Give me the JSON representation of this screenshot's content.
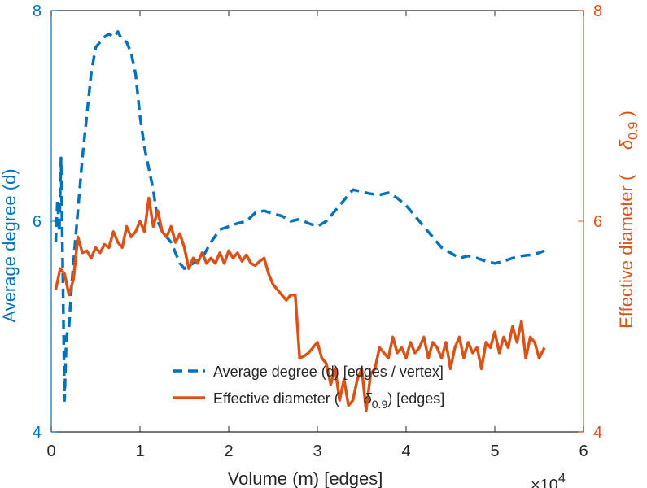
{
  "chart_data": {
    "type": "line",
    "xlabel": "Volume (m) [edges]",
    "x_exponent_label": "×10^4",
    "x_exponent_base": "×10",
    "x_exponent_power": "4",
    "xlim": [
      0,
      6
    ],
    "xticks": [
      "0",
      "1",
      "2",
      "3",
      "4",
      "5",
      "6"
    ],
    "y_left": {
      "label": "Average degree (d)",
      "lim": [
        4,
        8
      ],
      "ticks": [
        "4",
        "6",
        "8"
      ],
      "color": "#0072BD"
    },
    "y_right": {
      "label_prefix": "Effective diameter (",
      "label_symbol": "δ",
      "label_subscript": "0.9",
      "label_suffix": ")",
      "lim": [
        4,
        8
      ],
      "ticks": [
        "4",
        "6",
        "8"
      ],
      "color": "#D95319"
    },
    "legend": {
      "position": "bottom-right",
      "entries": [
        {
          "label": "Average degree (d) [edges / vertex]",
          "style": "dashed",
          "color": "#0072BD"
        },
        {
          "label_prefix": "Effective diameter (",
          "label_symbol": "δ",
          "label_subscript": "0.9",
          "label_suffix": ") [edges]",
          "style": "solid",
          "color": "#D95319"
        }
      ]
    },
    "series": [
      {
        "name": "Average degree (d) [edges / vertex]",
        "axis": "left",
        "color": "#0072BD",
        "style": "dashed",
        "x": [
          0.05,
          0.07,
          0.09,
          0.11,
          0.13,
          0.15,
          0.17,
          0.2,
          0.23,
          0.27,
          0.31,
          0.35,
          0.4,
          0.45,
          0.5,
          0.55,
          0.6,
          0.65,
          0.7,
          0.75,
          0.8,
          0.85,
          0.9,
          0.95,
          1.0,
          1.05,
          1.1,
          1.15,
          1.2,
          1.25,
          1.3,
          1.35,
          1.4,
          1.45,
          1.5,
          1.55,
          1.6,
          1.7,
          1.8,
          1.9,
          2.0,
          2.1,
          2.2,
          2.3,
          2.4,
          2.5,
          2.6,
          2.7,
          2.8,
          2.9,
          3.0,
          3.1,
          3.2,
          3.3,
          3.4,
          3.5,
          3.6,
          3.7,
          3.8,
          3.9,
          4.0,
          4.1,
          4.2,
          4.3,
          4.4,
          4.5,
          4.6,
          4.7,
          4.8,
          4.9,
          5.0,
          5.1,
          5.2,
          5.3,
          5.4,
          5.5,
          5.56
        ],
        "y": [
          5.8,
          6.2,
          5.9,
          6.6,
          5.5,
          4.3,
          4.9,
          5.0,
          5.4,
          5.8,
          6.2,
          6.6,
          7.0,
          7.4,
          7.65,
          7.7,
          7.75,
          7.78,
          7.75,
          7.8,
          7.72,
          7.7,
          7.6,
          7.4,
          7.0,
          6.7,
          6.5,
          6.3,
          6.0,
          5.9,
          5.85,
          5.8,
          5.7,
          5.6,
          5.55,
          5.58,
          5.6,
          5.65,
          5.8,
          5.92,
          5.95,
          5.98,
          6.0,
          6.08,
          6.1,
          6.07,
          6.05,
          6.0,
          6.02,
          5.98,
          5.95,
          6.0,
          6.1,
          6.2,
          6.3,
          6.28,
          6.26,
          6.25,
          6.27,
          6.22,
          6.15,
          6.05,
          5.95,
          5.85,
          5.75,
          5.7,
          5.65,
          5.67,
          5.65,
          5.62,
          5.6,
          5.62,
          5.65,
          5.67,
          5.68,
          5.7,
          5.72
        ]
      },
      {
        "name": "Effective diameter (δ 0.9) [edges]",
        "axis": "right",
        "color": "#D95319",
        "style": "solid",
        "x": [
          0.05,
          0.1,
          0.15,
          0.2,
          0.25,
          0.3,
          0.35,
          0.4,
          0.45,
          0.5,
          0.55,
          0.6,
          0.65,
          0.7,
          0.75,
          0.8,
          0.85,
          0.9,
          0.95,
          1.0,
          1.05,
          1.1,
          1.15,
          1.2,
          1.25,
          1.3,
          1.35,
          1.4,
          1.45,
          1.5,
          1.55,
          1.6,
          1.65,
          1.7,
          1.75,
          1.8,
          1.85,
          1.9,
          1.95,
          2.0,
          2.05,
          2.1,
          2.15,
          2.2,
          2.25,
          2.3,
          2.35,
          2.4,
          2.45,
          2.5,
          2.55,
          2.6,
          2.65,
          2.7,
          2.75,
          2.8,
          2.85,
          2.9,
          2.95,
          3.0,
          3.05,
          3.1,
          3.15,
          3.2,
          3.25,
          3.3,
          3.35,
          3.4,
          3.45,
          3.5,
          3.55,
          3.6,
          3.65,
          3.7,
          3.75,
          3.8,
          3.85,
          3.9,
          3.95,
          4.0,
          4.05,
          4.1,
          4.15,
          4.2,
          4.25,
          4.3,
          4.35,
          4.4,
          4.45,
          4.5,
          4.55,
          4.6,
          4.65,
          4.7,
          4.75,
          4.8,
          4.85,
          4.9,
          4.95,
          5.0,
          5.05,
          5.1,
          5.15,
          5.2,
          5.25,
          5.3,
          5.35,
          5.4,
          5.45,
          5.5,
          5.56
        ],
        "y": [
          5.35,
          5.55,
          5.5,
          5.3,
          5.45,
          5.85,
          5.7,
          5.72,
          5.65,
          5.75,
          5.7,
          5.78,
          5.75,
          5.9,
          5.8,
          5.75,
          5.95,
          5.85,
          5.9,
          6.0,
          5.9,
          6.22,
          5.95,
          6.1,
          5.9,
          5.85,
          5.95,
          5.8,
          5.88,
          5.75,
          5.55,
          5.65,
          5.6,
          5.7,
          5.6,
          5.65,
          5.6,
          5.7,
          5.6,
          5.72,
          5.65,
          5.7,
          5.62,
          5.68,
          5.6,
          5.58,
          5.62,
          5.65,
          5.5,
          5.4,
          5.35,
          5.3,
          5.25,
          5.3,
          5.3,
          4.7,
          4.72,
          4.75,
          4.8,
          4.85,
          4.7,
          4.65,
          4.45,
          4.6,
          4.3,
          4.5,
          4.25,
          4.3,
          4.5,
          4.6,
          4.2,
          4.55,
          4.6,
          4.8,
          4.75,
          4.7,
          4.9,
          4.75,
          4.8,
          4.7,
          4.85,
          4.75,
          4.8,
          4.9,
          4.7,
          4.85,
          4.8,
          4.7,
          4.85,
          4.6,
          4.8,
          4.9,
          4.7,
          4.85,
          4.75,
          4.8,
          4.6,
          4.85,
          4.8,
          4.95,
          4.75,
          4.9,
          4.8,
          5.0,
          4.85,
          5.05,
          4.7,
          4.9,
          4.85,
          4.7,
          4.8
        ]
      }
    ]
  }
}
